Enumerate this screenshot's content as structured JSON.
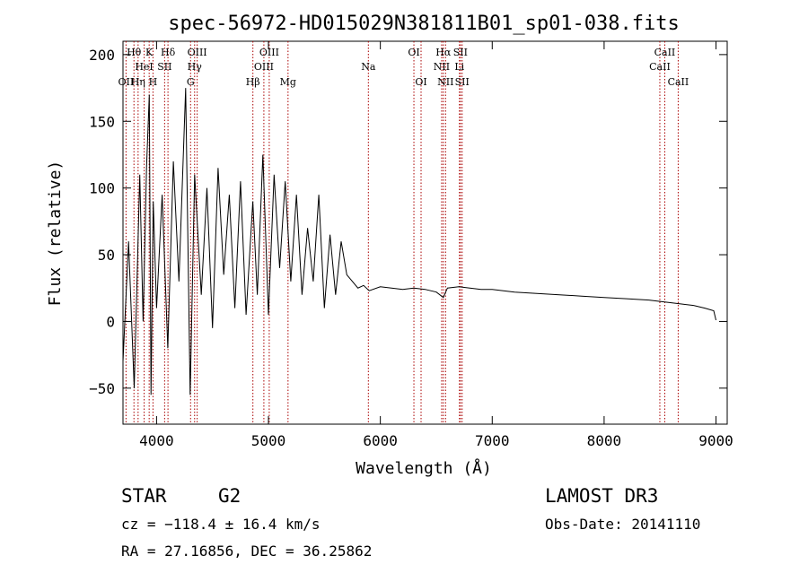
{
  "chart_data": {
    "type": "line",
    "title": "spec-56972-HD015029N381811B01_sp01-038.fits",
    "xlabel": "Wavelength (Å)",
    "ylabel": "Flux (relative)",
    "xlim": [
      3700,
      9100
    ],
    "ylim": [
      -77,
      210
    ],
    "x_ticks": [
      4000,
      5000,
      6000,
      7000,
      8000,
      9000
    ],
    "y_ticks": [
      -50,
      0,
      50,
      100,
      150,
      200
    ],
    "grid": false,
    "series": [
      {
        "name": "flux",
        "x": [
          3700,
          3750,
          3800,
          3850,
          3880,
          3910,
          3935,
          3950,
          3970,
          4000,
          4050,
          4100,
          4150,
          4200,
          4260,
          4300,
          4340,
          4400,
          4450,
          4500,
          4550,
          4600,
          4650,
          4700,
          4750,
          4800,
          4860,
          4900,
          4950,
          5000,
          5050,
          5100,
          5150,
          5200,
          5250,
          5300,
          5350,
          5400,
          5450,
          5500,
          5550,
          5600,
          5650,
          5700,
          5750,
          5800,
          5850,
          5900,
          6000,
          6100,
          6200,
          6300,
          6400,
          6500,
          6563,
          6600,
          6700,
          6800,
          6900,
          7000,
          7200,
          7400,
          7600,
          7800,
          8000,
          8200,
          8400,
          8500,
          8600,
          8700,
          8800,
          8900,
          8980,
          9000
        ],
        "y": [
          -30,
          60,
          -50,
          110,
          0,
          115,
          170,
          -55,
          90,
          10,
          95,
          -20,
          120,
          30,
          175,
          -55,
          110,
          20,
          100,
          -5,
          115,
          35,
          95,
          10,
          105,
          5,
          90,
          20,
          125,
          5,
          110,
          40,
          105,
          30,
          95,
          20,
          70,
          30,
          95,
          10,
          65,
          20,
          60,
          35,
          30,
          25,
          27,
          23,
          26,
          25,
          24,
          25,
          24,
          22,
          18,
          25,
          26,
          25,
          24,
          24,
          22,
          21,
          20,
          19,
          18,
          17,
          16,
          15,
          14,
          13,
          12,
          10,
          8,
          1
        ]
      }
    ],
    "line_markers": [
      {
        "label": "OII",
        "wavelength": 3727,
        "row": 3
      },
      {
        "label": "Hθ",
        "wavelength": 3798,
        "row": 1
      },
      {
        "label": "Hη",
        "wavelength": 3835,
        "row": 3
      },
      {
        "label": "HeI",
        "wavelength": 3889,
        "row": 2
      },
      {
        "label": "K",
        "wavelength": 3934,
        "row": 1
      },
      {
        "label": "H",
        "wavelength": 3968,
        "row": 3
      },
      {
        "label": "SII",
        "wavelength": 4072,
        "row": 2
      },
      {
        "label": "Hδ",
        "wavelength": 4102,
        "row": 1
      },
      {
        "label": "G",
        "wavelength": 4304,
        "row": 3
      },
      {
        "label": "Hγ",
        "wavelength": 4340,
        "row": 2
      },
      {
        "label": "OIII",
        "wavelength": 4363,
        "row": 1
      },
      {
        "label": "Hβ",
        "wavelength": 4861,
        "row": 3
      },
      {
        "label": "OIII",
        "wavelength": 4959,
        "row": 2
      },
      {
        "label": "OIII",
        "wavelength": 5007,
        "row": 1
      },
      {
        "label": "Mg",
        "wavelength": 5175,
        "row": 3
      },
      {
        "label": "Na",
        "wavelength": 5893,
        "row": 2
      },
      {
        "label": "OI",
        "wavelength": 6300,
        "row": 1
      },
      {
        "label": "OI",
        "wavelength": 6364,
        "row": 3
      },
      {
        "label": "NII",
        "wavelength": 6548,
        "row": 2
      },
      {
        "label": "Hα",
        "wavelength": 6563,
        "row": 1
      },
      {
        "label": "NII",
        "wavelength": 6583,
        "row": 3
      },
      {
        "label": "Li",
        "wavelength": 6707,
        "row": 2
      },
      {
        "label": "SII",
        "wavelength": 6716,
        "row": 1
      },
      {
        "label": "SII",
        "wavelength": 6731,
        "row": 3
      },
      {
        "label": "CaII",
        "wavelength": 8498,
        "row": 2
      },
      {
        "label": "CaII",
        "wavelength": 8542,
        "row": 1
      },
      {
        "label": "CaII",
        "wavelength": 8662,
        "row": 3
      }
    ],
    "marker_color": "#aa0000"
  },
  "info": {
    "object_class": "STAR",
    "subclass": "G2",
    "survey": "LAMOST DR3",
    "cz": "cz = −118.4 ± 16.4 km/s",
    "obs_date": "Obs-Date: 20141110",
    "coords": "RA =  27.16856, DEC =  36.25862"
  }
}
